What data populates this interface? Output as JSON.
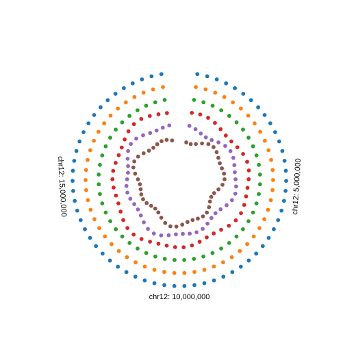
{
  "chart_data": {
    "type": "scatter",
    "coordinate_system": "polar",
    "title": "",
    "chromosome": "chr12",
    "x_range": [
      0,
      20000000
    ],
    "gap_at": 0,
    "ticks": [
      {
        "position": 5000000,
        "label": "chr12: 5,000,000"
      },
      {
        "position": 10000000,
        "label": "chr12: 10,000,000"
      },
      {
        "position": 15000000,
        "label": "chr12: 15,000,000"
      }
    ],
    "tracks_outer_to_inner": [
      {
        "color": "#1f77b4",
        "pattern": "constant",
        "count": 64
      },
      {
        "color": "#ff7f0e",
        "pattern": "constant",
        "count": 56
      },
      {
        "color": "#2ca02c",
        "pattern": "constant",
        "count": 50
      },
      {
        "color": "#d62728",
        "pattern": "varying",
        "count": 48
      },
      {
        "color": "#9467bd",
        "pattern": "varying",
        "count": 48
      },
      {
        "color": "#8c564b",
        "pattern": "varying",
        "count": 48
      }
    ],
    "grid": false,
    "legend": "none"
  }
}
